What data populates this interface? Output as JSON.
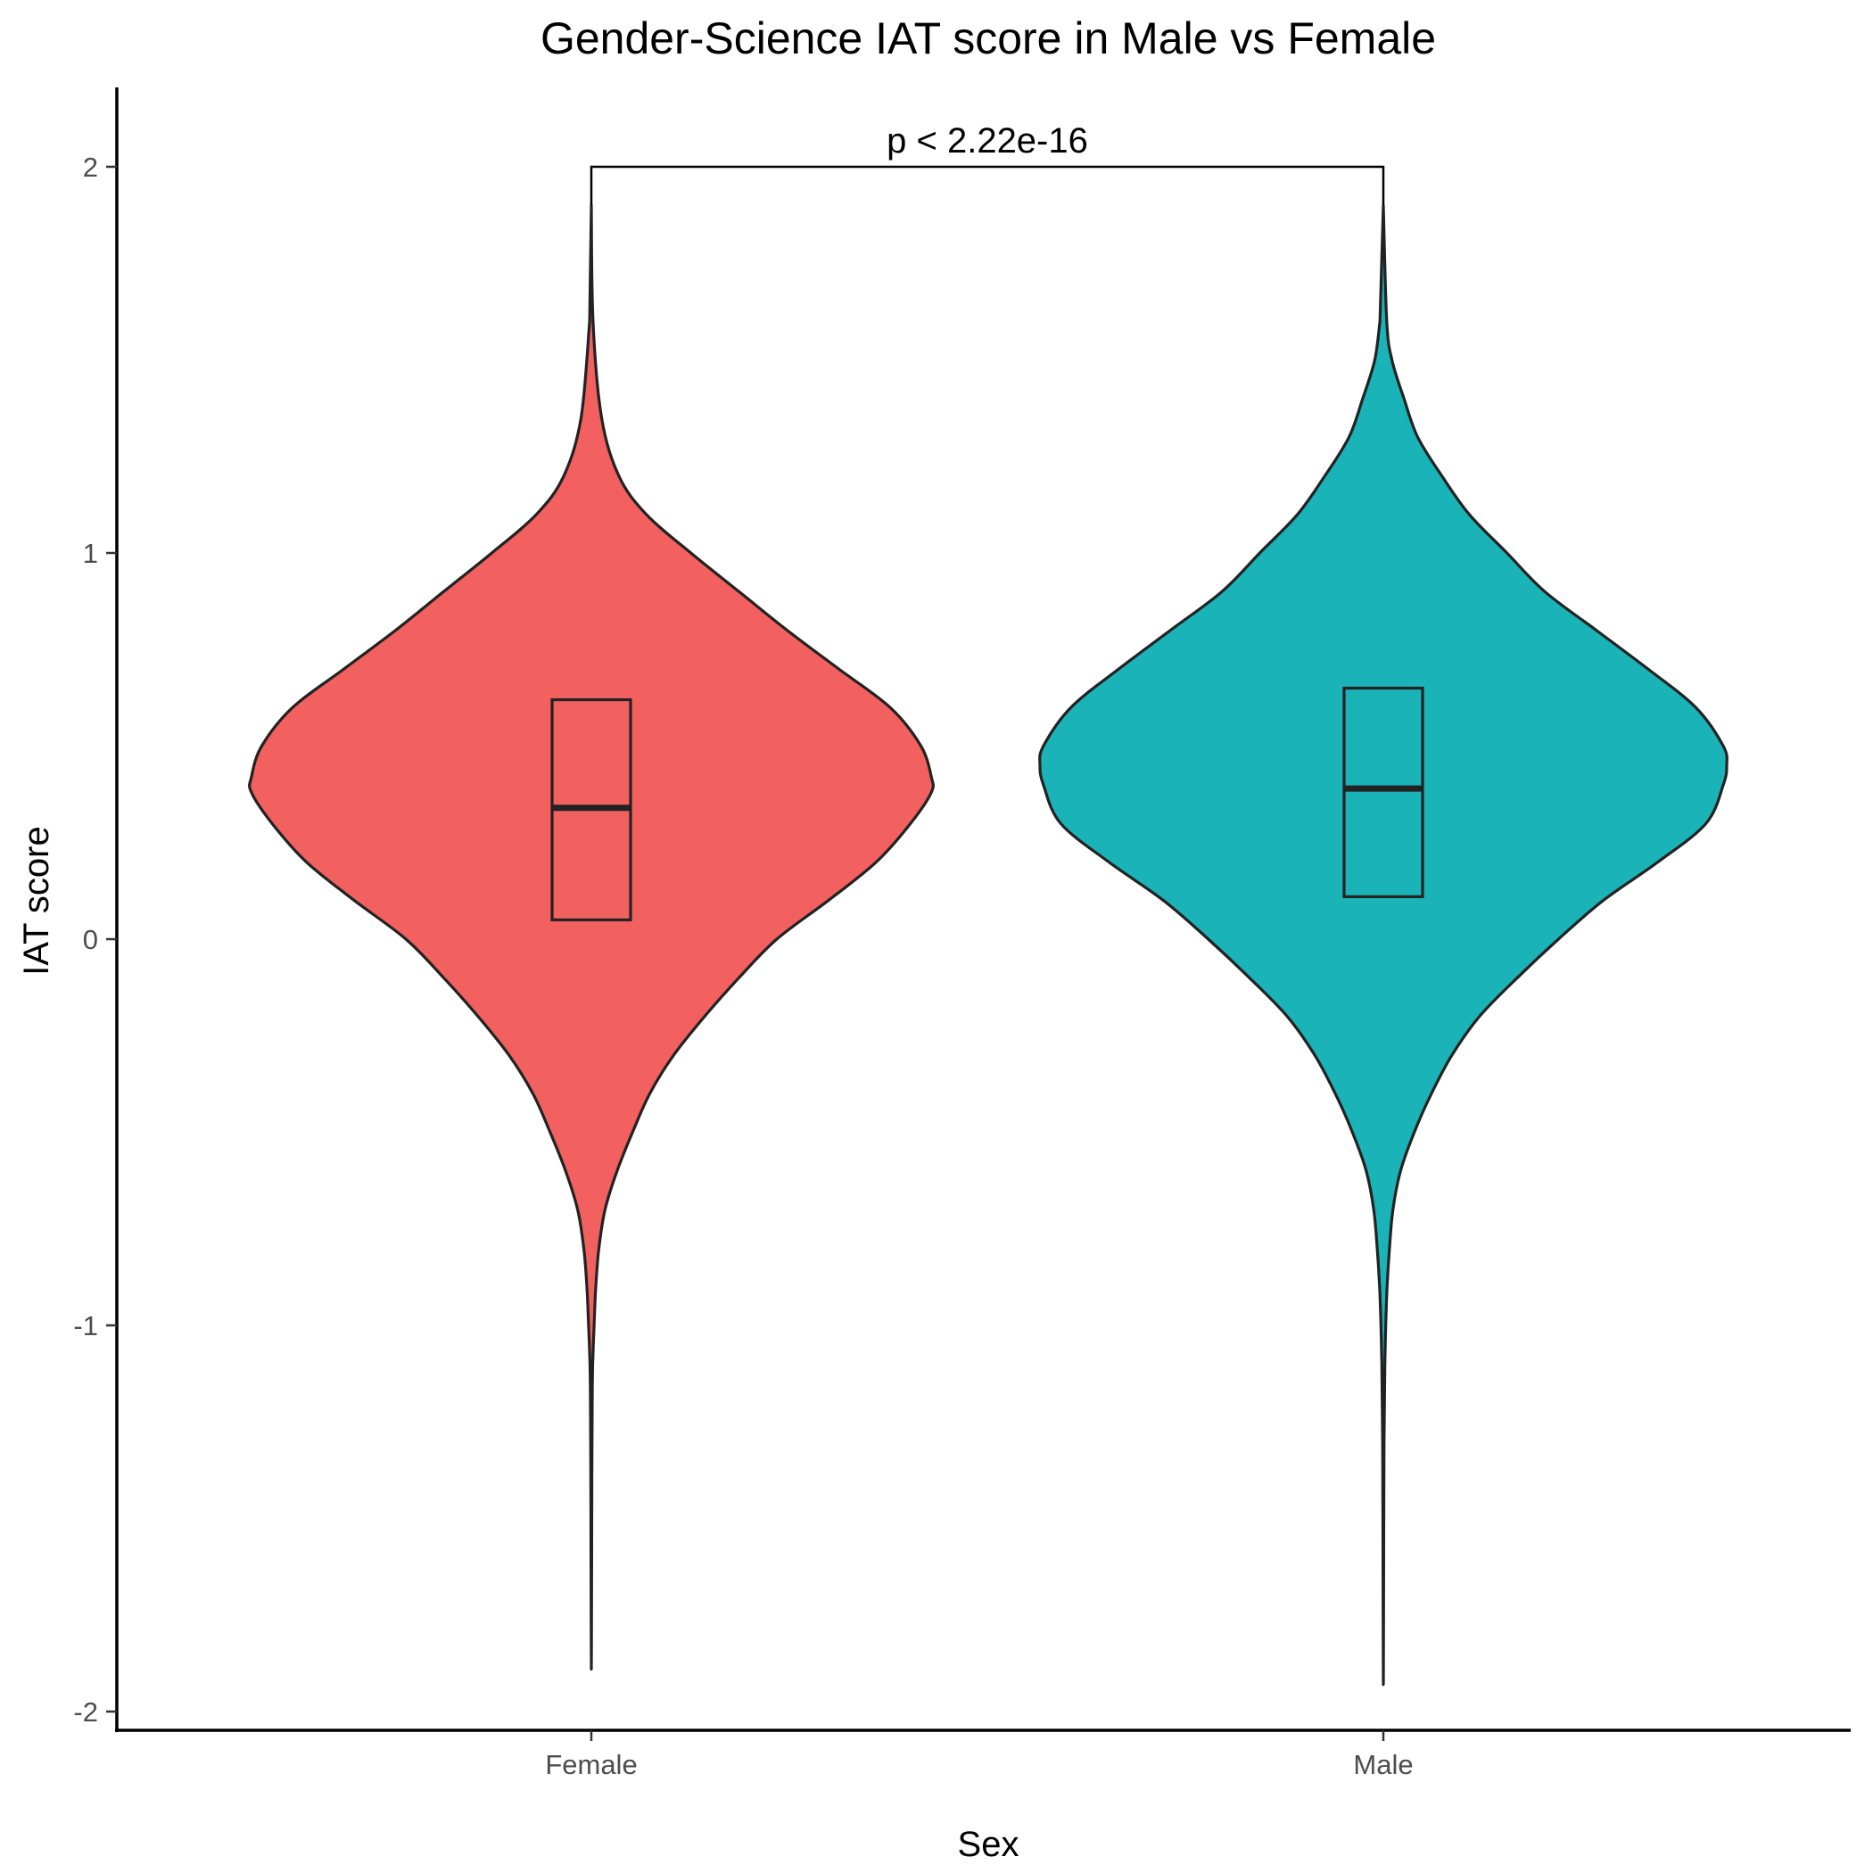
{
  "chart_data": {
    "type": "violin",
    "title": "Gender-Science IAT score in Male vs Female",
    "xlabel": "Sex",
    "ylabel": "IAT score",
    "categories": [
      "Female",
      "Male"
    ],
    "ylim": [
      -2.1,
      2.2
    ],
    "yticks": [
      {
        "value": 2,
        "label": "2"
      },
      {
        "value": 1,
        "label": "1"
      },
      {
        "value": 0,
        "label": "0"
      },
      {
        "value": -1,
        "label": "-1"
      },
      {
        "value": -2,
        "label": "-2"
      }
    ],
    "grid": false,
    "legend": "none",
    "colors": {
      "Female": "#F26160",
      "Male": "#1AB3B7"
    },
    "series": [
      {
        "category": "Female",
        "min": -1.89,
        "max": 1.9,
        "box": {
          "q1": 0.05,
          "median": 0.34,
          "q3": 0.62
        },
        "density_profile": [
          [
            1.9,
            0.0
          ],
          [
            1.6,
            0.005
          ],
          [
            1.35,
            0.03
          ],
          [
            1.2,
            0.08
          ],
          [
            1.1,
            0.16
          ],
          [
            1.0,
            0.29
          ],
          [
            0.9,
            0.43
          ],
          [
            0.8,
            0.57
          ],
          [
            0.7,
            0.72
          ],
          [
            0.6,
            0.87
          ],
          [
            0.5,
            0.96
          ],
          [
            0.42,
            0.99
          ],
          [
            0.38,
            0.99
          ],
          [
            0.3,
            0.93
          ],
          [
            0.2,
            0.83
          ],
          [
            0.1,
            0.69
          ],
          [
            0.0,
            0.54
          ],
          [
            -0.1,
            0.43
          ],
          [
            -0.2,
            0.33
          ],
          [
            -0.3,
            0.24
          ],
          [
            -0.4,
            0.17
          ],
          [
            -0.5,
            0.12
          ],
          [
            -0.6,
            0.075
          ],
          [
            -0.7,
            0.04
          ],
          [
            -0.8,
            0.022
          ],
          [
            -0.9,
            0.013
          ],
          [
            -1.0,
            0.008
          ],
          [
            -1.1,
            0.004
          ],
          [
            -1.2,
            0.0025
          ],
          [
            -1.4,
            0.0015
          ],
          [
            -1.6,
            0.001
          ],
          [
            -1.89,
            0.0
          ]
        ]
      },
      {
        "category": "Male",
        "min": -1.93,
        "max": 1.9,
        "box": {
          "q1": 0.11,
          "median": 0.39,
          "q3": 0.65
        },
        "density_profile": [
          [
            1.9,
            0.0
          ],
          [
            1.6,
            0.01
          ],
          [
            1.5,
            0.025
          ],
          [
            1.4,
            0.06
          ],
          [
            1.3,
            0.1
          ],
          [
            1.2,
            0.17
          ],
          [
            1.1,
            0.25
          ],
          [
            1.0,
            0.36
          ],
          [
            0.9,
            0.47
          ],
          [
            0.8,
            0.62
          ],
          [
            0.7,
            0.77
          ],
          [
            0.6,
            0.91
          ],
          [
            0.5,
            0.99
          ],
          [
            0.45,
            1.0
          ],
          [
            0.4,
            0.99
          ],
          [
            0.3,
            0.94
          ],
          [
            0.2,
            0.8
          ],
          [
            0.1,
            0.64
          ],
          [
            0.0,
            0.51
          ],
          [
            -0.1,
            0.39
          ],
          [
            -0.2,
            0.28
          ],
          [
            -0.3,
            0.2
          ],
          [
            -0.4,
            0.14
          ],
          [
            -0.5,
            0.09
          ],
          [
            -0.6,
            0.05
          ],
          [
            -0.7,
            0.028
          ],
          [
            -0.8,
            0.018
          ],
          [
            -0.9,
            0.011
          ],
          [
            -1.0,
            0.007
          ],
          [
            -1.1,
            0.0045
          ],
          [
            -1.3,
            0.002
          ],
          [
            -1.6,
            0.001
          ],
          [
            -1.93,
            0.0
          ]
        ]
      }
    ],
    "comparison": {
      "groups": [
        "Female",
        "Male"
      ],
      "y": 2.0,
      "label": "p < 2.22e-16"
    }
  }
}
